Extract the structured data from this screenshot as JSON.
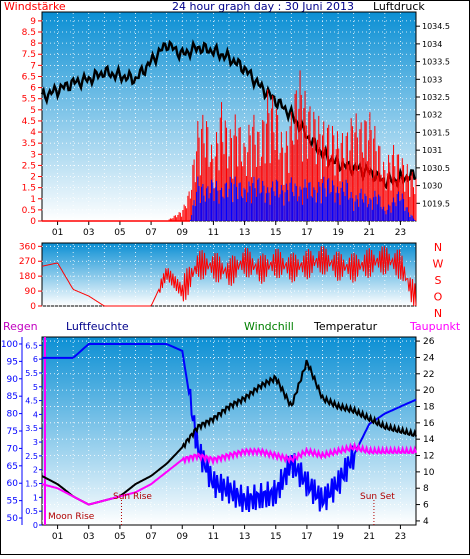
{
  "colors": {
    "red": "#ff0000",
    "blue": "#0000ff",
    "black": "#000000",
    "magenta": "#ff00ff",
    "green": "#008000",
    "navy": "#00008b",
    "bg_top": "#0a8fd6",
    "bg_bottom": "#ffffff"
  },
  "chart_data": [
    {
      "type": "line",
      "title": "24 hour graph day : 30 Juni 2013",
      "left_axis_label": "Windstärke",
      "right_axis_label": "Luftdruck",
      "x_ticks": [
        "01",
        "03",
        "05",
        "07",
        "09",
        "11",
        "13",
        "15",
        "17",
        "19",
        "21",
        "23"
      ],
      "left_ticks": [
        "9",
        "8.5",
        "8",
        "7.5",
        "7",
        "6.5",
        "6",
        "5.5",
        "5",
        "4.5",
        "4",
        "3.5",
        "3",
        "2.5",
        "2",
        "1.5",
        "1",
        "0.5",
        "0"
      ],
      "right_ticks": [
        "1034.5",
        "1034",
        "1033.5",
        "1033",
        "1032.5",
        "1032",
        "1031.5",
        "1031",
        "1030.5",
        "1030",
        "1019.5"
      ],
      "series": [
        {
          "color": "black",
          "axis": "right",
          "x": [
            0,
            1,
            2,
            3,
            4,
            5,
            6,
            7,
            8,
            9,
            10,
            11,
            12,
            13,
            14,
            15,
            16,
            17,
            18,
            19,
            20,
            21,
            22,
            23,
            24
          ],
          "values": [
            1032.5,
            1032.7,
            1032.9,
            1033.0,
            1033.2,
            1033.1,
            1033.0,
            1033.5,
            1034.0,
            1033.7,
            1033.9,
            1033.8,
            1033.6,
            1033.3,
            1032.8,
            1032.4,
            1032.0,
            1031.4,
            1030.9,
            1030.6,
            1030.5,
            1030.4,
            1030.1,
            1030.2,
            1030.3
          ]
        },
        {
          "color": "red",
          "axis": "left",
          "x": [
            0,
            8,
            9,
            9.5,
            10,
            10.5,
            11,
            11.5,
            12,
            12.5,
            13,
            13.5,
            14,
            14.5,
            15,
            15.5,
            16,
            16.5,
            17,
            17.5,
            18,
            18.5,
            19,
            19.5,
            20,
            20.5,
            21,
            21.5,
            22,
            22.5,
            23,
            23.5,
            24
          ],
          "values": [
            0,
            0,
            0.5,
            1.5,
            4.5,
            5,
            3,
            5.5,
            4,
            5,
            3.5,
            5,
            4,
            6,
            5.5,
            3.5,
            5,
            7,
            5.5,
            5,
            4.5,
            4.5,
            4,
            4,
            5,
            4.5,
            5,
            4,
            2.5,
            3.5,
            3,
            2.5,
            2
          ]
        },
        {
          "color": "blue",
          "axis": "left",
          "x": [
            0,
            9,
            9.5,
            10,
            10.5,
            11,
            11.5,
            12,
            12.5,
            13,
            13.5,
            14,
            14.5,
            15,
            15.5,
            16,
            16.5,
            17,
            17.5,
            18,
            18.5,
            19,
            19.5,
            20,
            20.5,
            21,
            21.5,
            22,
            22.5,
            23,
            23.5,
            24
          ],
          "values": [
            0,
            0,
            0,
            2,
            1.5,
            2,
            1.5,
            2,
            2,
            1.5,
            2,
            2,
            1.5,
            2,
            1.5,
            2,
            1.5,
            2,
            1.5,
            2,
            2,
            1.5,
            2,
            1,
            1.5,
            1,
            1.5,
            0.5,
            1,
            1.5,
            0.5,
            0
          ]
        }
      ]
    },
    {
      "type": "line",
      "title": "",
      "left_ticks": [
        "360",
        "270",
        "180",
        "90",
        "0"
      ],
      "right_labels": [
        "N",
        "W",
        "S",
        "O",
        "N"
      ],
      "x_ticks": [],
      "series": [
        {
          "color": "red",
          "axis": "left",
          "x": [
            0,
            1,
            2,
            3,
            4,
            5,
            6,
            7,
            8,
            9,
            10,
            11,
            12,
            13,
            14,
            15,
            16,
            17,
            18,
            19,
            20,
            21,
            22,
            23,
            24
          ],
          "values": [
            240,
            260,
            100,
            60,
            0,
            0,
            0,
            0,
            200,
            90,
            250,
            240,
            200,
            270,
            220,
            260,
            230,
            250,
            280,
            240,
            230,
            260,
            280,
            250,
            30
          ]
        }
      ]
    },
    {
      "type": "line",
      "title": "",
      "legend": [
        "Regen",
        "Luftfeuchte",
        "Windchill",
        "Temperatur",
        "Taupunkt"
      ],
      "regen_ticks": [
        "100",
        "95",
        "90",
        "85",
        "80",
        "75",
        "70",
        "65",
        "60",
        "55",
        "50"
      ],
      "luftfeuchte_ticks": [
        "6.5",
        "6",
        "5.5",
        "5",
        "4.5",
        "4",
        "3.5",
        "3",
        "2.5",
        "2",
        "1.5",
        "1",
        "0.5",
        "0"
      ],
      "temperature_ticks": [
        "26",
        "24",
        "22",
        "20",
        "18",
        "16",
        "14",
        "12",
        "10",
        "8",
        "6",
        "4"
      ],
      "x_ticks": [
        "01",
        "03",
        "05",
        "07",
        "09",
        "11",
        "13",
        "15",
        "17",
        "19",
        "21",
        "23"
      ],
      "annotations": [
        "Moon Rise",
        "Sun Rise",
        "Sun Set"
      ],
      "series": [
        {
          "name": "Luftfeuchte",
          "color": "blue",
          "axis": "humidity",
          "x": [
            0,
            1,
            2,
            3,
            4,
            5,
            6,
            7,
            8,
            9,
            10,
            11,
            12,
            13,
            14,
            15,
            16,
            17,
            18,
            19,
            20,
            21,
            22,
            23,
            24
          ],
          "values": [
            96,
            96,
            96,
            100,
            100,
            100,
            100,
            100,
            100,
            98,
            70,
            60,
            58,
            55,
            56,
            57,
            66,
            60,
            55,
            60,
            68,
            77,
            80,
            82,
            84
          ]
        },
        {
          "name": "Temperatur",
          "color": "black",
          "axis": "temp",
          "x": [
            0,
            1,
            2,
            3,
            4,
            5,
            6,
            7,
            8,
            9,
            10,
            11,
            12,
            13,
            14,
            15,
            16,
            17,
            18,
            19,
            20,
            21,
            22,
            23,
            24
          ],
          "values": [
            9.5,
            8.5,
            7.0,
            6.0,
            6.5,
            7.0,
            8.5,
            9.5,
            11.0,
            13.0,
            15.5,
            16.5,
            18.0,
            19.0,
            20.5,
            21.5,
            18.0,
            23.5,
            19.0,
            18.0,
            17.5,
            16.5,
            15.5,
            15.0,
            14.5
          ]
        },
        {
          "name": "Taupunkt",
          "color": "magenta",
          "axis": "temp",
          "x": [
            0,
            1,
            2,
            3,
            4,
            5,
            6,
            7,
            8,
            9,
            10,
            11,
            12,
            13,
            14,
            15,
            16,
            17,
            18,
            19,
            20,
            21,
            22,
            23,
            24
          ],
          "values": [
            8.5,
            8.0,
            7.0,
            6.0,
            6.5,
            7.0,
            7.5,
            8.5,
            10.0,
            11.5,
            12.0,
            11.5,
            12.0,
            12.5,
            12.5,
            12.0,
            11.5,
            12.5,
            12.0,
            12.5,
            13.0,
            12.5,
            12.5,
            12.5,
            12.5
          ]
        },
        {
          "name": "Windchill",
          "color": "green",
          "axis": "temp",
          "x": [],
          "values": []
        },
        {
          "name": "Regen",
          "color": "red",
          "axis": "rain",
          "x": [],
          "values": []
        }
      ]
    }
  ]
}
